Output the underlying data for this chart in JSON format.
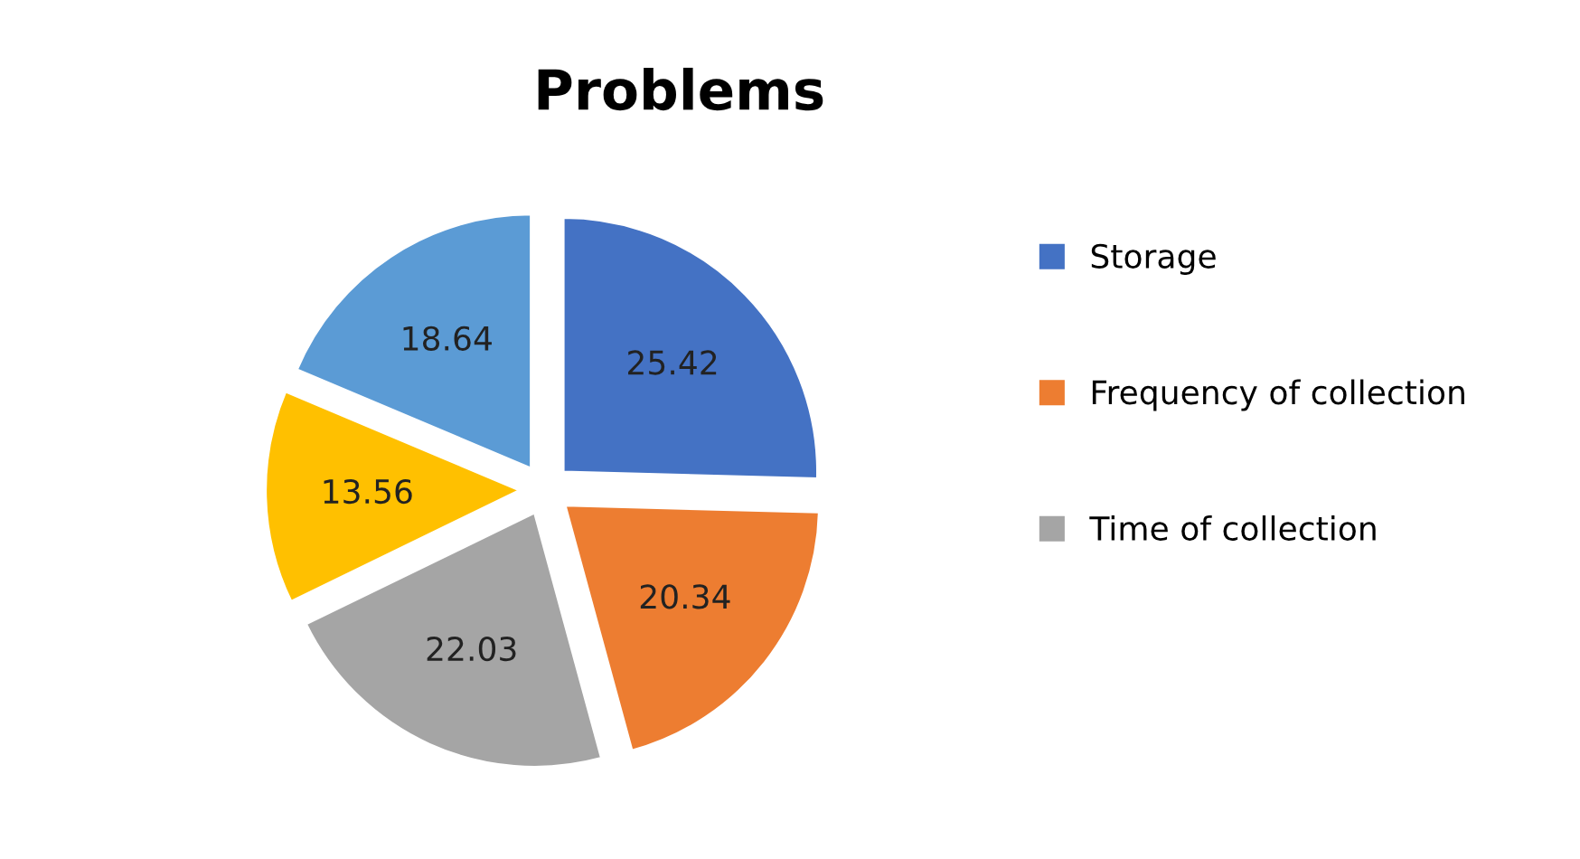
{
  "chart_data": {
    "type": "pie",
    "title": "Problems",
    "categories": [
      "Storage",
      "Frequency of collection",
      "Time of collection",
      null,
      null
    ],
    "values": [
      25.42,
      20.34,
      22.03,
      13.56,
      18.64
    ],
    "colors": [
      "#4472c4",
      "#ed7d31",
      "#a5a5a5",
      "#ffc000",
      "#5b9bd5"
    ],
    "data_labels": true,
    "legend": "right"
  }
}
